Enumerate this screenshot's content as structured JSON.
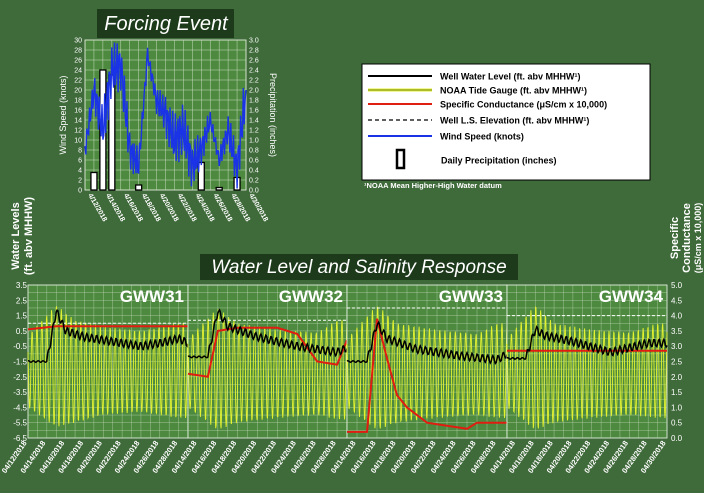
{
  "colors": {
    "background": "#3f6a3a",
    "panel_bg": "#4d8a3f",
    "grid": "#c9dcc0",
    "wind": "#1a33e6",
    "well": "#000000",
    "tide": "#e2f230",
    "conductance": "#e01d10",
    "elevation": "#ffffff",
    "title_box": "#1d3b1b"
  },
  "forcing": {
    "title": "Forcing Event",
    "left_axis_label": "Wind Speed (knots)",
    "right_axis_label": "Precipitation (inches)",
    "left_ticks": [
      "0",
      "2",
      "4",
      "6",
      "8",
      "10",
      "12",
      "14",
      "16",
      "18",
      "20",
      "22",
      "24",
      "26",
      "28",
      "30"
    ],
    "right_ticks": [
      "0.0",
      "0.2",
      "0.4",
      "0.6",
      "0.8",
      "1.0",
      "1.2",
      "1.4",
      "1.6",
      "1.8",
      "2.0",
      "2.2",
      "2.4",
      "2.6",
      "2.8",
      "3.0"
    ],
    "x_ticks": [
      "4/12/2018",
      "4/14/2018",
      "4/16/2018",
      "4/18/2018",
      "4/20/2018",
      "4/22/2018",
      "4/24/2018",
      "4/26/2018",
      "4/28/2018",
      "4/30/2018"
    ]
  },
  "legend": {
    "items": [
      {
        "label": "Well Water Level (ft. abv MHHW¹)",
        "style": "well"
      },
      {
        "label": "NOAA  Tide Gauge (ft. abv MHHW¹)",
        "style": "tide"
      },
      {
        "label": "Specific Conductance (μS/cm x 10,000)",
        "style": "conductance"
      },
      {
        "label": "Well L.S. Elevation (ft. abv MHHW¹)",
        "style": "elevation"
      },
      {
        "label": "Wind Speed (knots)",
        "style": "wind"
      },
      {
        "label": "Daily Precipitation (inches)",
        "style": "precip"
      }
    ],
    "footnote": "¹NOAA  Mean Higher-High  Water datum"
  },
  "response": {
    "title": "Water Level and Salinity Response",
    "left_label_line1": "Water Levels",
    "left_label_line2": "(ft. abv MHHW)",
    "right_label_line1": "Specific",
    "right_label_line2": "Conductance",
    "right_label_line3": "(μS/cm x 10,000)",
    "left_ticks": [
      "3.5",
      "2.5",
      "1.5",
      "0.5",
      "-0.5",
      "-1.5",
      "-2.5",
      "-3.5",
      "-4.5",
      "-5.5",
      "-6.5"
    ],
    "right_ticks": [
      "5.0",
      "4.5",
      "4.0",
      "3.5",
      "3.0",
      "2.5",
      "2.0",
      "1.5",
      "1.0",
      "0.5",
      "0.0"
    ],
    "panels": [
      {
        "name": "GWW31",
        "x_ticks": [
          "04/12/2018",
          "04/14/2018",
          "04/16/2018",
          "04/18/2018",
          "04/20/2018",
          "04/22/2018",
          "04/24/2018",
          "04/26/2018",
          "04/28/2018"
        ]
      },
      {
        "name": "GWW32",
        "x_ticks": [
          "04/14/2018",
          "04/16/2018",
          "04/18/2018",
          "04/20/2018",
          "04/22/2018",
          "04/24/2018",
          "04/26/2018",
          "04/28/2018"
        ]
      },
      {
        "name": "GWW33",
        "x_ticks": [
          "04/14/2018",
          "04/16/2018",
          "04/18/2018",
          "04/20/2018",
          "04/22/2018",
          "04/24/2018",
          "04/26/2018",
          "04/28/2018"
        ]
      },
      {
        "name": "GWW34",
        "x_ticks": [
          "04/14/2018",
          "04/16/2018",
          "04/18/2018",
          "04/20/2018",
          "04/22/2018",
          "04/24/2018",
          "04/26/2018",
          "04/28/2018",
          "04/30/2018"
        ]
      }
    ]
  },
  "chart_data": [
    {
      "type": "bar",
      "title": "Forcing Event",
      "xlabel": "",
      "ylabel": "Wind Speed (knots)",
      "y2label": "Precipitation (inches)",
      "ylim": [
        0,
        30
      ],
      "y2lim": [
        0,
        3.0
      ],
      "xlim": [
        "4/12/2018",
        "4/30/2018"
      ],
      "series": [
        {
          "name": "Daily Precipitation (inches)",
          "kind": "bar",
          "axis": "right",
          "x": [
            "4/13/2018",
            "4/14/2018",
            "4/15/2018",
            "4/18/2018",
            "4/25/2018",
            "4/27/2018",
            "4/29/2018"
          ],
          "values": [
            0.35,
            2.4,
            2.3,
            0.1,
            0.55,
            0.05,
            0.25
          ]
        },
        {
          "name": "Wind Speed (knots)",
          "kind": "line",
          "axis": "left",
          "x": [
            "4/12/2018",
            "4/13/2018",
            "4/14/2018",
            "4/15/2018",
            "4/16/2018",
            "4/17/2018",
            "4/18/2018",
            "4/19/2018",
            "4/20/2018",
            "4/21/2018",
            "4/22/2018",
            "4/23/2018",
            "4/24/2018",
            "4/25/2018",
            "4/26/2018",
            "4/27/2018",
            "4/28/2018",
            "4/29/2018",
            "4/30/2018"
          ],
          "values": [
            8,
            20,
            12,
            24,
            25,
            8,
            5,
            27,
            18,
            15,
            10,
            12,
            5,
            8,
            14,
            6,
            12,
            4,
            20
          ]
        }
      ]
    },
    {
      "type": "line",
      "title": "Water Level and Salinity Response",
      "ylabel": "Water Levels (ft. abv MHHW)",
      "y2label": "Specific Conductance (μS/cm x 10,000)",
      "ylim": [
        -6.5,
        3.5
      ],
      "y2lim": [
        0.0,
        5.0
      ],
      "panels": [
        {
          "name": "GWW31",
          "xlim": [
            "04/12/2018",
            "04/29/2018"
          ],
          "series": [
            {
              "name": "Well Water Level (ft. abv MHHW¹)",
              "x": [
                "04/12/2018",
                "04/14/2018",
                "04/15/2018",
                "04/16/2018",
                "04/18/2018",
                "04/22/2018",
                "04/24/2018",
                "04/26/2018",
                "04/28/2018",
                "04/29/2018"
              ],
              "values": [
                -1.5,
                -1.5,
                1.8,
                0.5,
                0.1,
                -0.3,
                -0.5,
                -0.3,
                0.0,
                -0.3
              ]
            },
            {
              "name": "NOAA  Tide Gauge (ft. abv MHHW¹)",
              "x": [
                "04/12/2018",
                "04/15/2018",
                "04/17/2018",
                "04/20/2018",
                "04/24/2018",
                "04/28/2018"
              ],
              "high": [
                0.2,
                2.2,
                1.2,
                0.8,
                0.5,
                1.0
              ],
              "low": [
                -4.5,
                -5.8,
                -5.5,
                -5.0,
                -4.8,
                -5.2
              ]
            },
            {
              "name": "Specific Conductance (μS/cm x 10,000)",
              "axis": "right",
              "x": [
                "04/12/2018",
                "04/15/2018",
                "04/29/2018"
              ],
              "values": [
                3.55,
                3.65,
                3.65
              ]
            },
            {
              "name": "Well L.S. Elevation (ft. abv MHHW¹)",
              "values": [
                1.0
              ]
            }
          ]
        },
        {
          "name": "GWW32",
          "xlim": [
            "04/13/2018",
            "04/29/2018"
          ],
          "series": [
            {
              "name": "Well Water Level (ft. abv MHHW¹)",
              "x": [
                "04/13/2018",
                "04/15/2018",
                "04/16/2018",
                "04/17/2018",
                "04/20/2018",
                "04/24/2018",
                "04/28/2018",
                "04/29/2018"
              ],
              "values": [
                -1.2,
                -1.2,
                1.8,
                0.8,
                0.1,
                -0.5,
                -0.9,
                -0.6
              ]
            },
            {
              "name": "NOAA  Tide Gauge (ft. abv MHHW¹)",
              "x": [
                "04/13/2018",
                "04/16/2018",
                "04/18/2018",
                "04/22/2018",
                "04/26/2018",
                "04/28/2018"
              ],
              "high": [
                0.0,
                2.0,
                1.0,
                0.6,
                0.4,
                1.2
              ],
              "low": [
                -4.5,
                -6.0,
                -5.5,
                -5.2,
                -5.0,
                -5.3
              ]
            },
            {
              "name": "Specific Conductance (μS/cm x 10,000)",
              "axis": "right",
              "x": [
                "04/13/2018",
                "04/15/2018",
                "04/16/2018",
                "04/18/2018",
                "04/22/2018",
                "04/24/2018",
                "04/26/2018",
                "04/28/2018",
                "04/29/2018"
              ],
              "values": [
                2.1,
                2.0,
                3.5,
                3.6,
                3.6,
                3.4,
                2.5,
                2.4,
                3.2
              ]
            },
            {
              "name": "Well L.S. Elevation (ft. abv MHHW¹)",
              "values": [
                1.2
              ]
            }
          ]
        },
        {
          "name": "GWW33",
          "xlim": [
            "04/13/2018",
            "04/29/2018"
          ],
          "series": [
            {
              "name": "Well Water Level (ft. abv MHHW¹)",
              "x": [
                "04/13/2018",
                "04/15/2018",
                "04/16/2018",
                "04/17/2018",
                "04/20/2018",
                "04/24/2018",
                "04/28/2018",
                "04/29/2018"
              ],
              "values": [
                -1.5,
                -1.5,
                1.0,
                0.0,
                -0.7,
                -1.1,
                -1.4,
                -1.0
              ]
            },
            {
              "name": "NOAA  Tide Gauge (ft. abv MHHW¹)",
              "x": [
                "04/13/2018",
                "04/16/2018",
                "04/18/2018",
                "04/22/2018",
                "04/26/2018",
                "04/28/2018"
              ],
              "high": [
                0.0,
                2.2,
                1.0,
                0.6,
                0.3,
                1.0
              ],
              "low": [
                -4.5,
                -6.0,
                -5.5,
                -5.2,
                -5.0,
                -5.2
              ]
            },
            {
              "name": "Specific Conductance (μS/cm x 10,000)",
              "axis": "right",
              "x": [
                "04/13/2018",
                "04/15/2018",
                "04/16/2018",
                "04/17/2018",
                "04/18/2018",
                "04/19/2018",
                "04/21/2018",
                "04/25/2018",
                "04/26/2018",
                "04/29/2018"
              ],
              "values": [
                0.2,
                0.2,
                3.9,
                2.6,
                1.4,
                1.0,
                0.5,
                0.3,
                0.5,
                0.5
              ]
            },
            {
              "name": "Well L.S. Elevation (ft. abv MHHW¹)",
              "values": [
                2.0
              ]
            }
          ]
        },
        {
          "name": "GWW34",
          "xlim": [
            "04/13/2018",
            "04/30/2018"
          ],
          "series": [
            {
              "name": "Well Water Level (ft. abv MHHW¹)",
              "x": [
                "04/13/2018",
                "04/15/2018",
                "04/16/2018",
                "04/17/2018",
                "04/20/2018",
                "04/24/2018",
                "04/28/2018",
                "04/30/2018"
              ],
              "values": [
                -1.3,
                -1.3,
                0.6,
                0.2,
                -0.2,
                -0.9,
                -0.3,
                -0.3
              ]
            },
            {
              "name": "NOAA  Tide Gauge (ft. abv MHHW¹)",
              "x": [
                "04/13/2018",
                "04/16/2018",
                "04/18/2018",
                "04/22/2018",
                "04/26/2018",
                "04/29/2018"
              ],
              "high": [
                0.0,
                2.2,
                1.0,
                0.6,
                0.4,
                1.0
              ],
              "low": [
                -4.5,
                -6.0,
                -5.5,
                -5.2,
                -5.0,
                -5.2
              ]
            },
            {
              "name": "Specific Conductance (μS/cm x 10,000)",
              "axis": "right",
              "x": [
                "04/13/2018",
                "04/30/2018"
              ],
              "values": [
                2.85,
                2.85
              ]
            },
            {
              "name": "Well L.S. Elevation (ft. abv MHHW¹)",
              "values": [
                1.5
              ]
            }
          ]
        }
      ]
    }
  ]
}
